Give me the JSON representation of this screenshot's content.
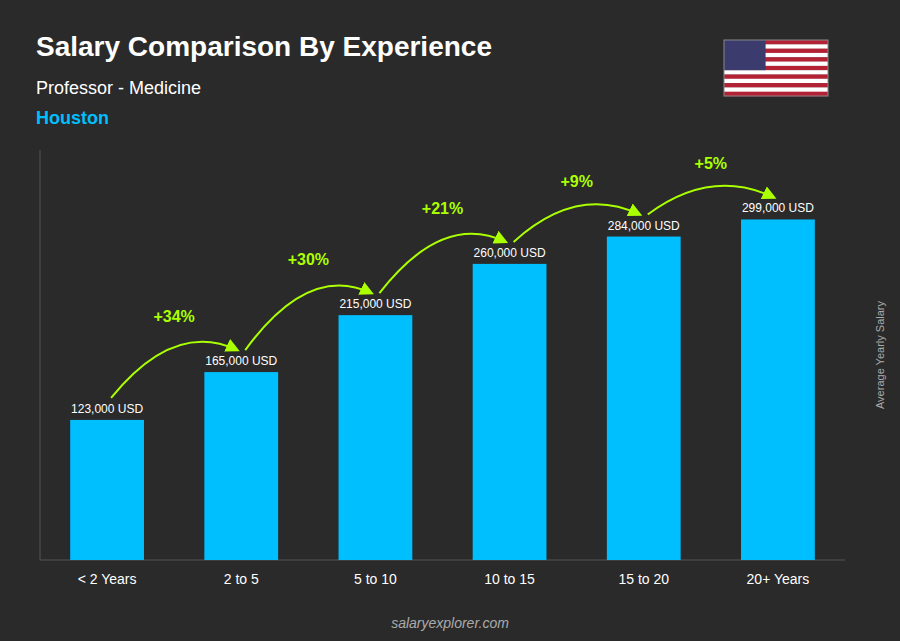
{
  "chart_data": {
    "type": "bar",
    "title": "Salary Comparison By Experience",
    "subtitle": "Professor - Medicine",
    "city": "Houston",
    "y_label": "Average Yearly Salary",
    "footer": "salaryexplorer.com",
    "categories": [
      "< 2 Years",
      "2 to 5",
      "5 to 10",
      "10 to 15",
      "15 to 20",
      "20+ Years"
    ],
    "values": [
      123000,
      165000,
      215000,
      260000,
      284000,
      299000
    ],
    "value_labels": [
      "123,000 USD",
      "165,000 USD",
      "215,000 USD",
      "260,000 USD",
      "284,000 USD",
      "299,000 USD"
    ],
    "change_labels": [
      "+34%",
      "+30%",
      "+21%",
      "+9%",
      "+5%"
    ],
    "color": "#00BFFF",
    "ylim": [
      0,
      360000
    ],
    "data_labels": true,
    "tick_labels": "x",
    "grid": false
  }
}
